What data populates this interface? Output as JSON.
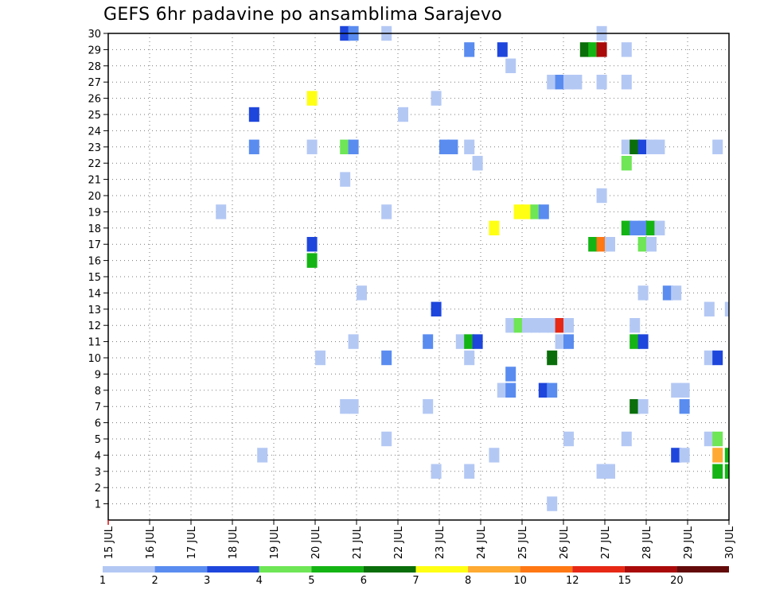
{
  "chart_data": {
    "type": "heatmap",
    "title": "GEFS 6hr padavine po ansamblima Sarajevo",
    "xlabel": "",
    "ylabel": "",
    "x_tick_labels": [
      "15 JUL",
      "16 JUL",
      "17 JUL",
      "18 JUL",
      "19 JUL",
      "20 JUL",
      "21 JUL",
      "22 JUL",
      "23 JUL",
      "24 JUL",
      "25 JUL",
      "26 JUL",
      "27 JUL",
      "28 JUL",
      "29 JUL",
      "30 JUL"
    ],
    "y_range": [
      0,
      30
    ],
    "y_tick_labels": [
      "1",
      "2",
      "3",
      "4",
      "5",
      "6",
      "7",
      "8",
      "9",
      "10",
      "11",
      "12",
      "13",
      "14",
      "15",
      "16",
      "17",
      "18",
      "19",
      "20",
      "21",
      "22",
      "23",
      "24",
      "25",
      "26",
      "27",
      "28",
      "29",
      "30"
    ],
    "grid": true,
    "legend_placement": "bottom",
    "color_scale": {
      "thresholds": [
        "1",
        "2",
        "3",
        "4",
        "5",
        "6",
        "7",
        "8",
        "10",
        "12",
        "15",
        "20"
      ],
      "colors": [
        "#b4c8f4",
        "#5a8cf0",
        "#1e46dc",
        "#6ee656",
        "#14b414",
        "#0a6e0a",
        "#ffff14",
        "#ffaa32",
        "#ff7814",
        "#e62814",
        "#aa0a0a",
        "#640a0a"
      ]
    },
    "cells": [
      {
        "day": 20.6,
        "member": 30,
        "bin": 3
      },
      {
        "day": 20.8,
        "member": 30,
        "bin": 2
      },
      {
        "day": 21.6,
        "member": 30,
        "bin": 1
      },
      {
        "day": 26.8,
        "member": 30,
        "bin": 1
      },
      {
        "day": 23.6,
        "member": 29,
        "bin": 2
      },
      {
        "day": 24.4,
        "member": 29,
        "bin": 3
      },
      {
        "day": 26.4,
        "member": 29,
        "bin": 6
      },
      {
        "day": 26.6,
        "member": 29,
        "bin": 5
      },
      {
        "day": 26.8,
        "member": 29,
        "bin": 11
      },
      {
        "day": 27.4,
        "member": 29,
        "bin": 1
      },
      {
        "day": 24.6,
        "member": 28,
        "bin": 1
      },
      {
        "day": 25.6,
        "member": 27,
        "bin": 1
      },
      {
        "day": 25.8,
        "member": 27,
        "bin": 2
      },
      {
        "day": 26.0,
        "member": 27,
        "bin": 1
      },
      {
        "day": 26.2,
        "member": 27,
        "bin": 1
      },
      {
        "day": 26.8,
        "member": 27,
        "bin": 1
      },
      {
        "day": 27.4,
        "member": 27,
        "bin": 1
      },
      {
        "day": 19.8,
        "member": 26,
        "bin": 7
      },
      {
        "day": 22.8,
        "member": 26,
        "bin": 1
      },
      {
        "day": 18.4,
        "member": 25,
        "bin": 3
      },
      {
        "day": 22.0,
        "member": 25,
        "bin": 1
      },
      {
        "day": 18.4,
        "member": 23,
        "bin": 2
      },
      {
        "day": 19.8,
        "member": 23,
        "bin": 1
      },
      {
        "day": 20.6,
        "member": 23,
        "bin": 4
      },
      {
        "day": 20.8,
        "member": 23,
        "bin": 2
      },
      {
        "day": 23.0,
        "member": 23,
        "bin": 2
      },
      {
        "day": 23.2,
        "member": 23,
        "bin": 2
      },
      {
        "day": 23.6,
        "member": 23,
        "bin": 1
      },
      {
        "day": 27.4,
        "member": 23,
        "bin": 1
      },
      {
        "day": 27.6,
        "member": 23,
        "bin": 6
      },
      {
        "day": 27.8,
        "member": 23,
        "bin": 3
      },
      {
        "day": 28.0,
        "member": 23,
        "bin": 1
      },
      {
        "day": 28.2,
        "member": 23,
        "bin": 1
      },
      {
        "day": 29.6,
        "member": 23,
        "bin": 1
      },
      {
        "day": 23.8,
        "member": 22,
        "bin": 1
      },
      {
        "day": 27.4,
        "member": 22,
        "bin": 4
      },
      {
        "day": 20.6,
        "member": 21,
        "bin": 1
      },
      {
        "day": 26.8,
        "member": 20,
        "bin": 1
      },
      {
        "day": 17.6,
        "member": 19,
        "bin": 1
      },
      {
        "day": 21.6,
        "member": 19,
        "bin": 1
      },
      {
        "day": 24.8,
        "member": 19,
        "bin": 7
      },
      {
        "day": 25.0,
        "member": 19,
        "bin": 7
      },
      {
        "day": 25.2,
        "member": 19,
        "bin": 4
      },
      {
        "day": 25.4,
        "member": 19,
        "bin": 2
      },
      {
        "day": 24.2,
        "member": 18,
        "bin": 7
      },
      {
        "day": 27.4,
        "member": 18,
        "bin": 5
      },
      {
        "day": 27.6,
        "member": 18,
        "bin": 2
      },
      {
        "day": 27.8,
        "member": 18,
        "bin": 2
      },
      {
        "day": 28.0,
        "member": 18,
        "bin": 5
      },
      {
        "day": 28.2,
        "member": 18,
        "bin": 1
      },
      {
        "day": 19.8,
        "member": 17,
        "bin": 3
      },
      {
        "day": 26.6,
        "member": 17,
        "bin": 5
      },
      {
        "day": 26.8,
        "member": 17,
        "bin": 9
      },
      {
        "day": 27.0,
        "member": 17,
        "bin": 1
      },
      {
        "day": 27.8,
        "member": 17,
        "bin": 4
      },
      {
        "day": 28.0,
        "member": 17,
        "bin": 1
      },
      {
        "day": 19.8,
        "member": 16,
        "bin": 5
      },
      {
        "day": 21.0,
        "member": 14,
        "bin": 1
      },
      {
        "day": 27.8,
        "member": 14,
        "bin": 1
      },
      {
        "day": 28.4,
        "member": 14,
        "bin": 2
      },
      {
        "day": 28.6,
        "member": 14,
        "bin": 1
      },
      {
        "day": 22.8,
        "member": 13,
        "bin": 3
      },
      {
        "day": 29.4,
        "member": 13,
        "bin": 1
      },
      {
        "day": 29.9,
        "member": 13,
        "bin": 1
      },
      {
        "day": 24.6,
        "member": 12,
        "bin": 1
      },
      {
        "day": 24.8,
        "member": 12,
        "bin": 4
      },
      {
        "day": 25.0,
        "member": 12,
        "bin": 1
      },
      {
        "day": 25.2,
        "member": 12,
        "bin": 1
      },
      {
        "day": 25.4,
        "member": 12,
        "bin": 1
      },
      {
        "day": 25.6,
        "member": 12,
        "bin": 1
      },
      {
        "day": 25.8,
        "member": 12,
        "bin": 10
      },
      {
        "day": 26.0,
        "member": 12,
        "bin": 1
      },
      {
        "day": 27.6,
        "member": 12,
        "bin": 1
      },
      {
        "day": 20.8,
        "member": 11,
        "bin": 1
      },
      {
        "day": 22.6,
        "member": 11,
        "bin": 2
      },
      {
        "day": 23.4,
        "member": 11,
        "bin": 1
      },
      {
        "day": 23.6,
        "member": 11,
        "bin": 5
      },
      {
        "day": 23.8,
        "member": 11,
        "bin": 3
      },
      {
        "day": 25.8,
        "member": 11,
        "bin": 1
      },
      {
        "day": 26.0,
        "member": 11,
        "bin": 2
      },
      {
        "day": 27.6,
        "member": 11,
        "bin": 5
      },
      {
        "day": 27.8,
        "member": 11,
        "bin": 3
      },
      {
        "day": 20.0,
        "member": 10,
        "bin": 1
      },
      {
        "day": 21.6,
        "member": 10,
        "bin": 2
      },
      {
        "day": 23.6,
        "member": 10,
        "bin": 1
      },
      {
        "day": 25.6,
        "member": 10,
        "bin": 6
      },
      {
        "day": 29.4,
        "member": 10,
        "bin": 1
      },
      {
        "day": 29.6,
        "member": 10,
        "bin": 3
      },
      {
        "day": 24.6,
        "member": 9,
        "bin": 2
      },
      {
        "day": 24.4,
        "member": 8,
        "bin": 1
      },
      {
        "day": 24.6,
        "member": 8,
        "bin": 2
      },
      {
        "day": 25.4,
        "member": 8,
        "bin": 3
      },
      {
        "day": 25.6,
        "member": 8,
        "bin": 2
      },
      {
        "day": 28.6,
        "member": 8,
        "bin": 1
      },
      {
        "day": 28.8,
        "member": 8,
        "bin": 1
      },
      {
        "day": 20.6,
        "member": 7,
        "bin": 1
      },
      {
        "day": 20.8,
        "member": 7,
        "bin": 1
      },
      {
        "day": 22.6,
        "member": 7,
        "bin": 1
      },
      {
        "day": 27.6,
        "member": 7,
        "bin": 6
      },
      {
        "day": 27.8,
        "member": 7,
        "bin": 1
      },
      {
        "day": 28.8,
        "member": 7,
        "bin": 2
      },
      {
        "day": 21.6,
        "member": 5,
        "bin": 1
      },
      {
        "day": 26.0,
        "member": 5,
        "bin": 1
      },
      {
        "day": 27.4,
        "member": 5,
        "bin": 1
      },
      {
        "day": 29.4,
        "member": 5,
        "bin": 1
      },
      {
        "day": 29.6,
        "member": 5,
        "bin": 4
      },
      {
        "day": 18.6,
        "member": 4,
        "bin": 1
      },
      {
        "day": 24.2,
        "member": 4,
        "bin": 1
      },
      {
        "day": 28.6,
        "member": 4,
        "bin": 3
      },
      {
        "day": 28.8,
        "member": 4,
        "bin": 1
      },
      {
        "day": 29.6,
        "member": 4,
        "bin": 8
      },
      {
        "day": 29.9,
        "member": 4,
        "bin": 5
      },
      {
        "day": 22.8,
        "member": 3,
        "bin": 1
      },
      {
        "day": 23.6,
        "member": 3,
        "bin": 1
      },
      {
        "day": 26.8,
        "member": 3,
        "bin": 1
      },
      {
        "day": 27.0,
        "member": 3,
        "bin": 1
      },
      {
        "day": 29.6,
        "member": 3,
        "bin": 5
      },
      {
        "day": 29.9,
        "member": 3,
        "bin": 5
      },
      {
        "day": 25.6,
        "member": 1,
        "bin": 1
      }
    ]
  }
}
